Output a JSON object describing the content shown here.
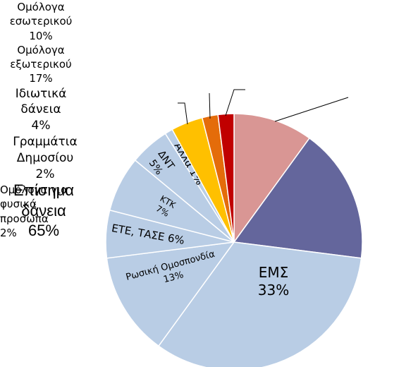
{
  "chart_data": {
    "type": "pie",
    "categories": [
      "Ομόλογα εσωτερικού",
      "Ομόλογα εξωτερικού",
      "ΕΜΣ",
      "Ρωσική Ομοσπονδία",
      "ΕΤΕ, ΤΑΣΕ",
      "ΚΤΚ",
      "ΔΝΤ",
      "Άλλα",
      "Ιδιωτικά δάνεια",
      "Γραμμάτια Δημοσίου",
      "Ομόλογα για φυσικά προσωπα"
    ],
    "values": [
      10,
      17,
      33,
      13,
      6,
      7,
      5,
      1,
      4,
      2,
      2
    ],
    "value_labels": [
      "10%",
      "17%",
      "33%",
      "13%",
      "6%",
      "7%",
      "5%",
      "1%",
      "4%",
      "2%",
      "2%"
    ],
    "colors": [
      "#d99694",
      "#64669c",
      "#b9cde5",
      "#b9cde5",
      "#b9cde5",
      "#b9cde5",
      "#b9cde5",
      "#b9cde5",
      "#ffc000",
      "#e46c0a",
      "#c00000"
    ],
    "annotation": {
      "text": "Επίσημα δάνεια",
      "value": 65,
      "label": "65%"
    }
  }
}
